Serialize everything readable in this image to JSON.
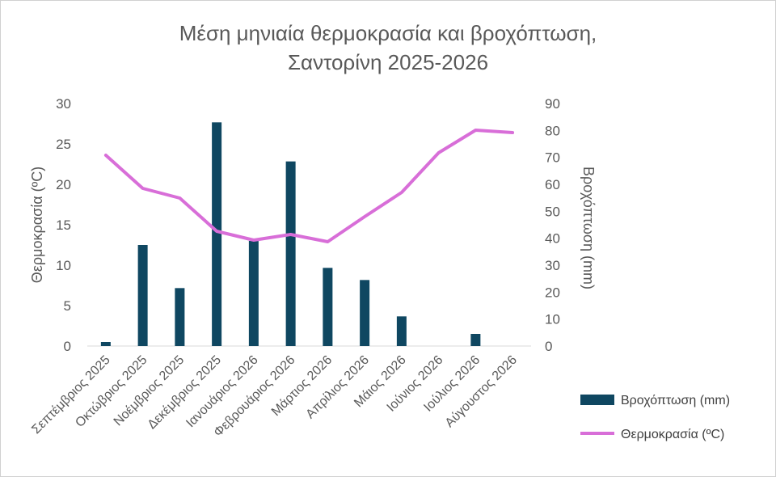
{
  "chart_data": {
    "type": "bar+line",
    "title_line1": "Μέση μηνιαία θερμοκρασία και βροχόπτωση,",
    "title_line2": "Σαντορίνη 2025-2026",
    "categories": [
      "Σεπτέμβριος 2025",
      "Οκτώβριος 2025",
      "Νοέμβριος 2025",
      "Δεκέμβριος 2025",
      "Ιανουάριος 2026",
      "Φεβρουάριος 2026",
      "Μάρτιος 2026",
      "Απρίλιος 2026",
      "Μάιος 2026",
      "Ιούνιος 2026",
      "Ιούλιος 2026",
      "Αύγουστος 2026"
    ],
    "y_left": {
      "label": "Θερμοκρασία (ºC)",
      "min": 0,
      "max": 30,
      "ticks": [
        0,
        5,
        10,
        15,
        20,
        25,
        30
      ]
    },
    "y_right": {
      "label": "Βροχόπτωση (mm)",
      "min": 0,
      "max": 90,
      "ticks": [
        0,
        10,
        20,
        30,
        40,
        50,
        60,
        70,
        80,
        90
      ]
    },
    "series": [
      {
        "name": "Βροχόπτωση (mm)",
        "type": "bar",
        "axis": "right",
        "color": "#0f4761",
        "values": [
          1.5,
          37.5,
          21.5,
          83,
          39,
          68.5,
          29,
          24.5,
          11,
          0,
          4.5,
          0
        ]
      },
      {
        "name": "Θερμοκρασία (ºC)",
        "type": "line",
        "axis": "left",
        "color": "#d86ed8",
        "values": [
          23.6,
          19.5,
          18.3,
          14.2,
          13.1,
          13.8,
          12.9,
          16.0,
          19.0,
          23.9,
          26.7,
          26.4
        ]
      }
    ],
    "grid": false,
    "legend_position": "right"
  }
}
